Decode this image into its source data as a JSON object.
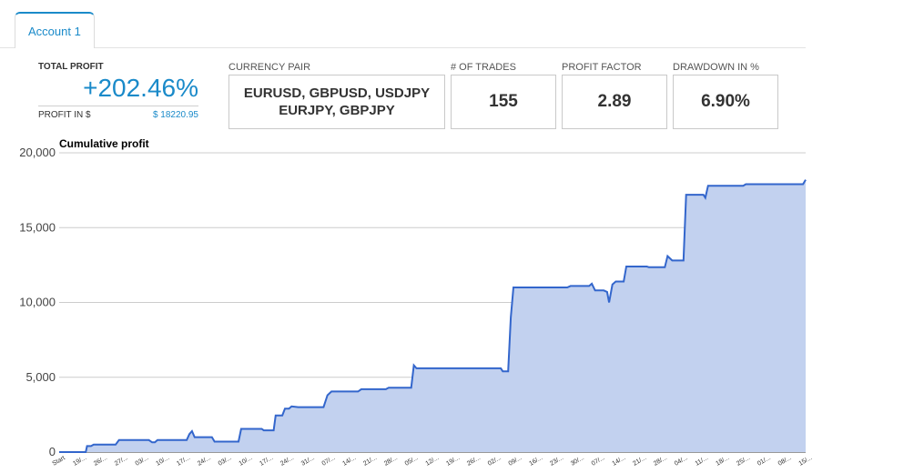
{
  "tabs": [
    {
      "label": "Account 1"
    }
  ],
  "summary": {
    "total_profit_label": "TOTAL PROFIT",
    "total_profit_value": "+202.46%",
    "profit_in_label": "PROFIT IN $",
    "profit_in_value": "$ 18220.95"
  },
  "stats": {
    "currency_pair_label": "CURRENCY PAIR",
    "currency_pair_value": "EURUSD, GBPUSD, USDJPY\nEURJPY, GBPJPY",
    "trades_label": "# OF TRADES",
    "trades_value": "155",
    "profit_factor_label": "PROFIT FACTOR",
    "profit_factor_value": "2.89",
    "drawdown_label": "DRAWDOWN IN %",
    "drawdown_value": "6.90%"
  },
  "colors": {
    "accent": "#1a8ac9",
    "line": "#3366cc",
    "fill": "#c2d1ef"
  },
  "chart_data": {
    "type": "area",
    "title": "Cumulative profit",
    "ylim": [
      0,
      20000
    ],
    "yticks": [
      0,
      5000,
      10000,
      15000,
      20000
    ],
    "ytick_labels": [
      "0",
      "5,000",
      "10,000",
      "15,000",
      "20,000"
    ],
    "xtick_labels": [
      "Start",
      "19/...",
      "26/...",
      "27/...",
      "03/...",
      "10/...",
      "17/...",
      "24/...",
      "03/...",
      "10/...",
      "17/...",
      "24/...",
      "31/...",
      "07/...",
      "14/...",
      "21/...",
      "28/...",
      "05/...",
      "12/...",
      "19/...",
      "26/...",
      "02/...",
      "09/...",
      "16/...",
      "23/...",
      "30/...",
      "07/...",
      "14/...",
      "21/...",
      "28/...",
      "04/...",
      "11/...",
      "18/...",
      "25/...",
      "01/...",
      "08/...",
      "15/..."
    ],
    "points": [
      [
        0,
        0
      ],
      [
        4,
        0
      ],
      [
        4.2,
        400
      ],
      [
        4.8,
        400
      ],
      [
        5.2,
        500
      ],
      [
        8.5,
        500
      ],
      [
        9,
        800
      ],
      [
        13.5,
        800
      ],
      [
        14,
        650
      ],
      [
        14.4,
        650
      ],
      [
        14.8,
        800
      ],
      [
        19.2,
        800
      ],
      [
        19.6,
        1200
      ],
      [
        20,
        1400
      ],
      [
        20.4,
        1000
      ],
      [
        23,
        1000
      ],
      [
        23.4,
        700
      ],
      [
        27,
        700
      ],
      [
        27.4,
        1550
      ],
      [
        30.5,
        1550
      ],
      [
        30.8,
        1450
      ],
      [
        32.3,
        1450
      ],
      [
        32.6,
        2450
      ],
      [
        33.6,
        2450
      ],
      [
        34,
        2900
      ],
      [
        34.6,
        2900
      ],
      [
        35,
        3050
      ],
      [
        36,
        3000
      ],
      [
        39.8,
        3000
      ],
      [
        40.4,
        3800
      ],
      [
        41,
        4050
      ],
      [
        45,
        4050
      ],
      [
        45.5,
        4200
      ],
      [
        49.2,
        4200
      ],
      [
        49.6,
        4300
      ],
      [
        53,
        4300
      ],
      [
        53.4,
        5800
      ],
      [
        53.8,
        5600
      ],
      [
        66.5,
        5600
      ],
      [
        66.8,
        5400
      ],
      [
        67.6,
        5400
      ],
      [
        68,
        9000
      ],
      [
        68.4,
        11000
      ],
      [
        76.5,
        11000
      ],
      [
        77,
        11100
      ],
      [
        79.8,
        11100
      ],
      [
        80.2,
        11250
      ],
      [
        80.7,
        10800
      ],
      [
        82,
        10800
      ],
      [
        82.5,
        10700
      ],
      [
        82.8,
        10000
      ],
      [
        83.3,
        11200
      ],
      [
        83.8,
        11400
      ],
      [
        85,
        11400
      ],
      [
        85.4,
        12400
      ],
      [
        88.5,
        12400
      ],
      [
        88.8,
        12350
      ],
      [
        91.2,
        12350
      ],
      [
        91.6,
        13100
      ],
      [
        92.3,
        12800
      ],
      [
        94,
        12800
      ],
      [
        94.4,
        17200
      ],
      [
        97,
        17200
      ],
      [
        97.3,
        17000
      ],
      [
        97.7,
        17800
      ],
      [
        103,
        17800
      ],
      [
        103.4,
        17900
      ],
      [
        112,
        17900
      ],
      [
        112.4,
        18200
      ]
    ],
    "xmax": 112.4
  }
}
